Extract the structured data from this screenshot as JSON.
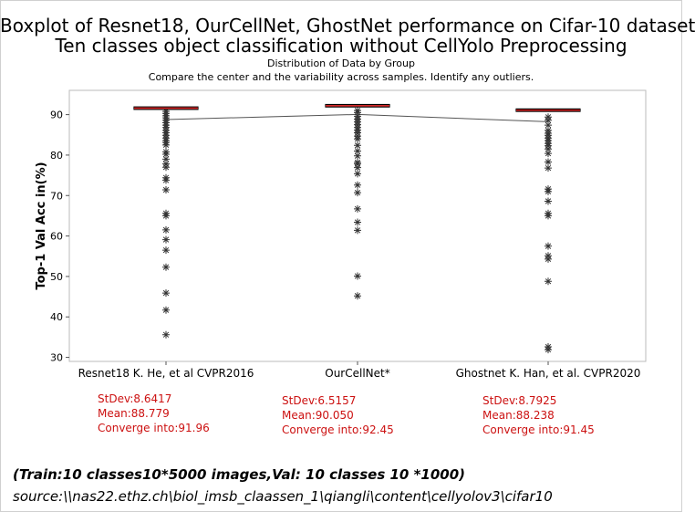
{
  "header": {
    "title_line1": "Boxplot of Resnet18, OurCellNet, GhostNet performance on Cifar-10 dataset",
    "title_line2": "Ten classes object classification without CellYolo Preprocessing",
    "subtitle1": "Distribution of Data by Group",
    "subtitle2": "Compare the center and the variability across samples. Identify any outliers."
  },
  "chart_data": {
    "type": "boxplot",
    "ylabel": "Top-1 Val Acc in(%)",
    "ylim": [
      29,
      96
    ],
    "yticks": [
      30,
      40,
      50,
      60,
      70,
      80,
      90
    ],
    "grid": false,
    "categories": [
      "Resnet18 K. He, et al CVPR2016",
      "OurCellNet*",
      "Ghostnet K. Han, et al. CVPR2020"
    ],
    "boxes": [
      {
        "q1": 91.3,
        "median": 91.6,
        "q3": 91.9,
        "mean": 88.779,
        "outliers": [
          90.8,
          90.3,
          89.7,
          89.2,
          88.6,
          88.0,
          87.4,
          86.8,
          86.1,
          85.5,
          84.9,
          84.2,
          83.6,
          83.1,
          82.5,
          80.8,
          80.2,
          79.0,
          77.8,
          77.0,
          74.4,
          73.8,
          71.4,
          65.6,
          65.0,
          61.5,
          59.1,
          56.5,
          52.3,
          45.9,
          41.7,
          35.6
        ]
      },
      {
        "q1": 91.9,
        "median": 92.2,
        "q3": 92.5,
        "mean": 90.05,
        "outliers": [
          91.0,
          90.5,
          89.6,
          88.9,
          88.2,
          87.5,
          86.8,
          86.2,
          85.5,
          84.7,
          84.0,
          82.4,
          81.0,
          79.8,
          78.2,
          77.8,
          76.9,
          75.4,
          72.6,
          70.7,
          66.7,
          63.4,
          61.4,
          50.1,
          45.2
        ]
      },
      {
        "q1": 90.8,
        "median": 91.1,
        "q3": 91.4,
        "mean": 88.238,
        "outliers": [
          89.4,
          88.6,
          87.4,
          86.1,
          85.4,
          84.9,
          84.2,
          83.6,
          82.9,
          82.3,
          81.5,
          80.4,
          78.3,
          76.8,
          71.6,
          71.0,
          68.6,
          65.6,
          65.0,
          57.5,
          55.1,
          54.3,
          48.8,
          32.6,
          31.9
        ]
      }
    ],
    "mean_line": true,
    "colors": {
      "box_fill": "#f08c8c",
      "box_edge": "#000000",
      "median": "#d62020",
      "points": "#333333",
      "mean_line": "#555555",
      "plot_border": "#bbbbbb"
    }
  },
  "stats": [
    {
      "stdev": "StDev:8.6417",
      "mean": "Mean:88.779",
      "converge": "Converge into:91.96"
    },
    {
      "stdev": "StDev:6.5157",
      "mean": "Mean:90.050",
      "converge": "Converge into:92.45"
    },
    {
      "stdev": "StDev:8.7925",
      "mean": "Mean:88.238",
      "converge": "Converge into:91.45"
    }
  ],
  "footer": {
    "note": "(Train:10 classes10*5000 images,Val: 10 classes 10 *1000)",
    "source": "source:\\\\nas22.ethz.ch\\biol_imsb_claassen_1\\qiangli\\content\\cellyolov3\\cifar10"
  }
}
